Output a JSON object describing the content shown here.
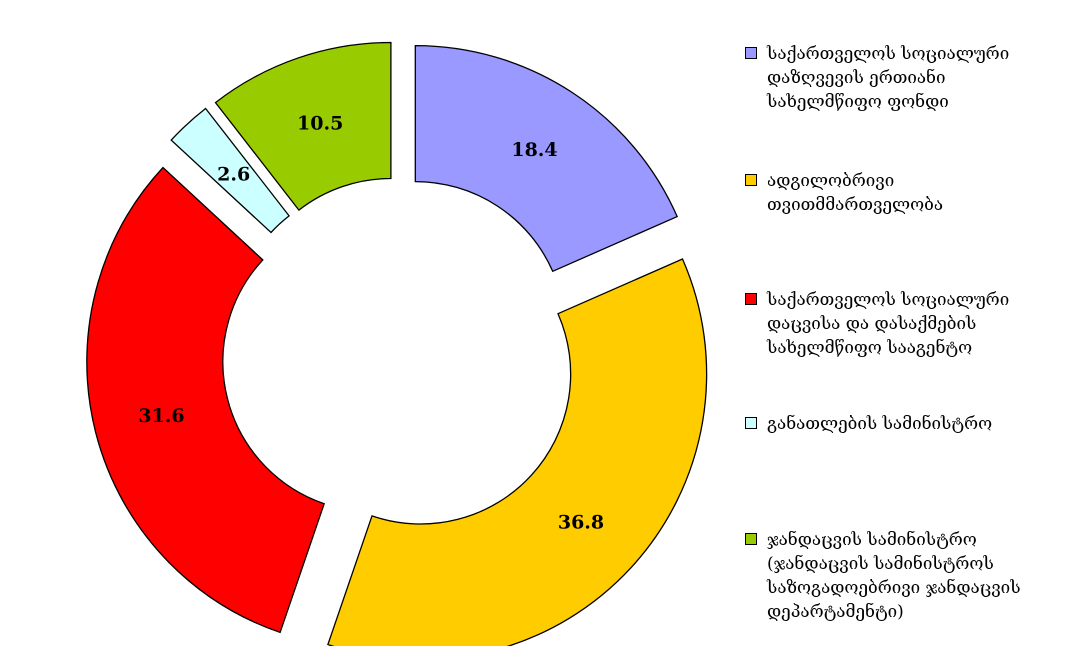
{
  "chart_data": {
    "type": "donut",
    "title": "",
    "slices": [
      {
        "label": "საქართველოს სოციალური დაზღვევის ერთიანი სახელმწიფო ფონდი",
        "value": 18.4,
        "color": "#9999FF"
      },
      {
        "label": "ადგილობრივი თვითმმართველობა",
        "value": 36.8,
        "color": "#FFCC00"
      },
      {
        "label": "საქართველოს სოციალური დაცვისა და დასაქმების სახელმწიფო სააგენტო",
        "value": 31.6,
        "color": "#FF0000"
      },
      {
        "label": "განათლების სამინისტრო",
        "value": 2.6,
        "color": "#CCFFFF"
      },
      {
        "label": "ჯანდაცვის სამინისტრო (ჯანდაცვის სამინისტროს საზოგადოებრივი ჯანდაცვის დეპარტამენტი)",
        "value": 10.5,
        "color": "#99CC00"
      }
    ],
    "legend_position": "right",
    "exploded": true
  },
  "legend": [
    {
      "label": "საქართველოს სოციალური\nდაზღვევის ერთიანი\nსახელმწიფო ფონდი",
      "color": "#9999FF"
    },
    {
      "label": "ადგილობრივი\nთვითმმართველობა",
      "color": "#FFCC00"
    },
    {
      "label": "საქართველოს სოციალური\nდაცვისა და დასაქმების\nსახელმწიფო სააგენტო",
      "color": "#FF0000"
    },
    {
      "label": "განათლების სამინისტრო",
      "color": "#CCFFFF"
    },
    {
      "label": "ჯანდაცვის სამინისტრო\n(ჯანდაცვის სამინისტროს\nსაზოგადოებრივი ჯანდაცვის\nდეპარტამენტი)",
      "color": "#99CC00"
    }
  ]
}
